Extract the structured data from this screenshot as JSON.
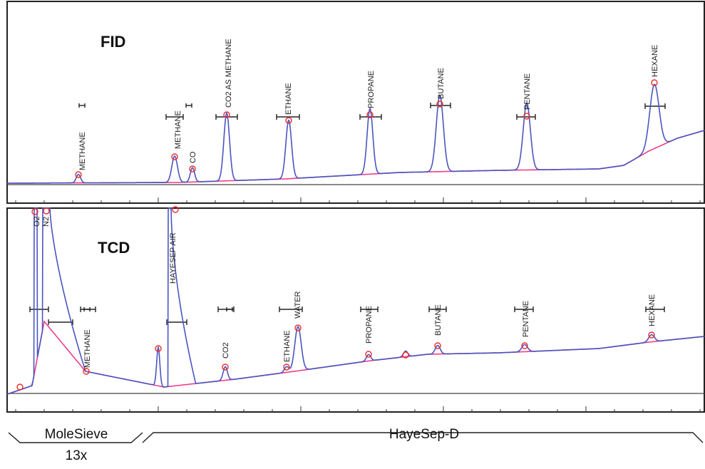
{
  "chart_data": {
    "type": "line",
    "panels": [
      {
        "detector": "FID",
        "peaks": [
          "METHANE",
          "METHANE",
          "CO",
          "CO2 AS METHANE",
          "ETHANE",
          "PROPANE",
          "BUTANE",
          "PENTANE",
          "HEXANE"
        ]
      },
      {
        "detector": "TCD",
        "peaks": [
          "O2",
          "N2",
          "METHANE",
          "HAYESEP AIR",
          "CO2",
          "ETHANE",
          "WATER",
          "PROPANE",
          "BUTANE",
          "PENTANE",
          "HEXANE"
        ]
      }
    ],
    "columns": [
      "MoleSieve",
      "13x",
      "HayeSep-D"
    ]
  },
  "colors": {
    "trace": "#4a55c0",
    "baseline": "#ee3d8a",
    "peak_marker": "#ee2b2b"
  }
}
